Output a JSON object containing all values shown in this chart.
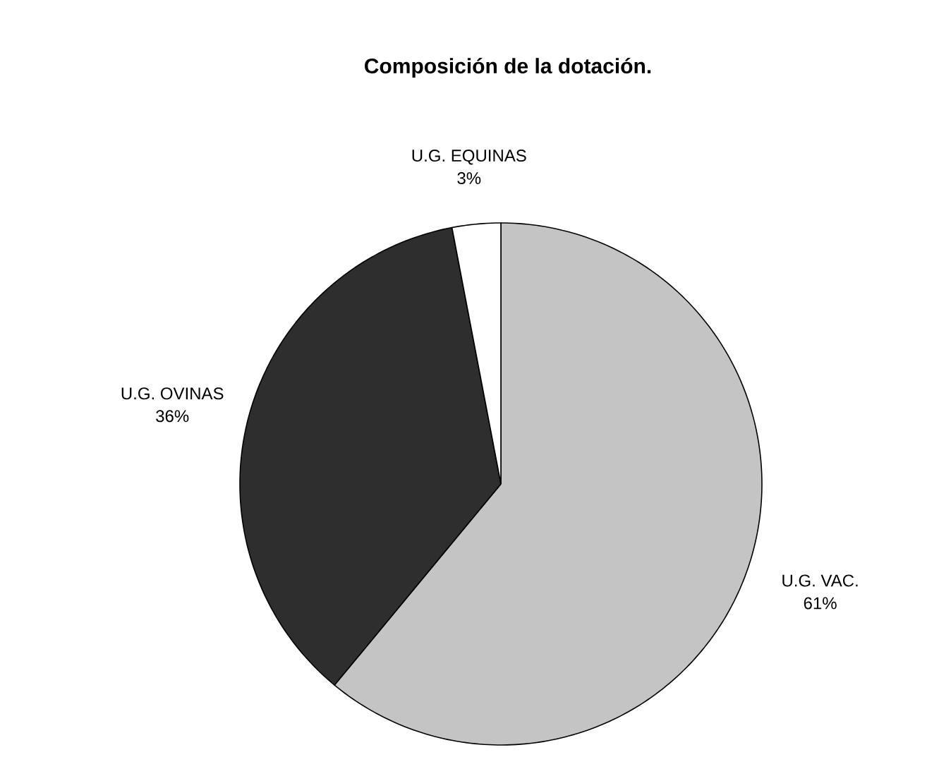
{
  "chart_data": {
    "type": "pie",
    "title": "Composición de la dotación.",
    "categories": [
      "U.G. VAC.",
      "U.G. OVINAS",
      "U.G. EQUINAS"
    ],
    "values": [
      61,
      36,
      3
    ],
    "value_labels": [
      "61%",
      "36%",
      "3%"
    ],
    "colors": [
      "#c4c4c4",
      "#2e2e2e",
      "#ffffff"
    ]
  }
}
